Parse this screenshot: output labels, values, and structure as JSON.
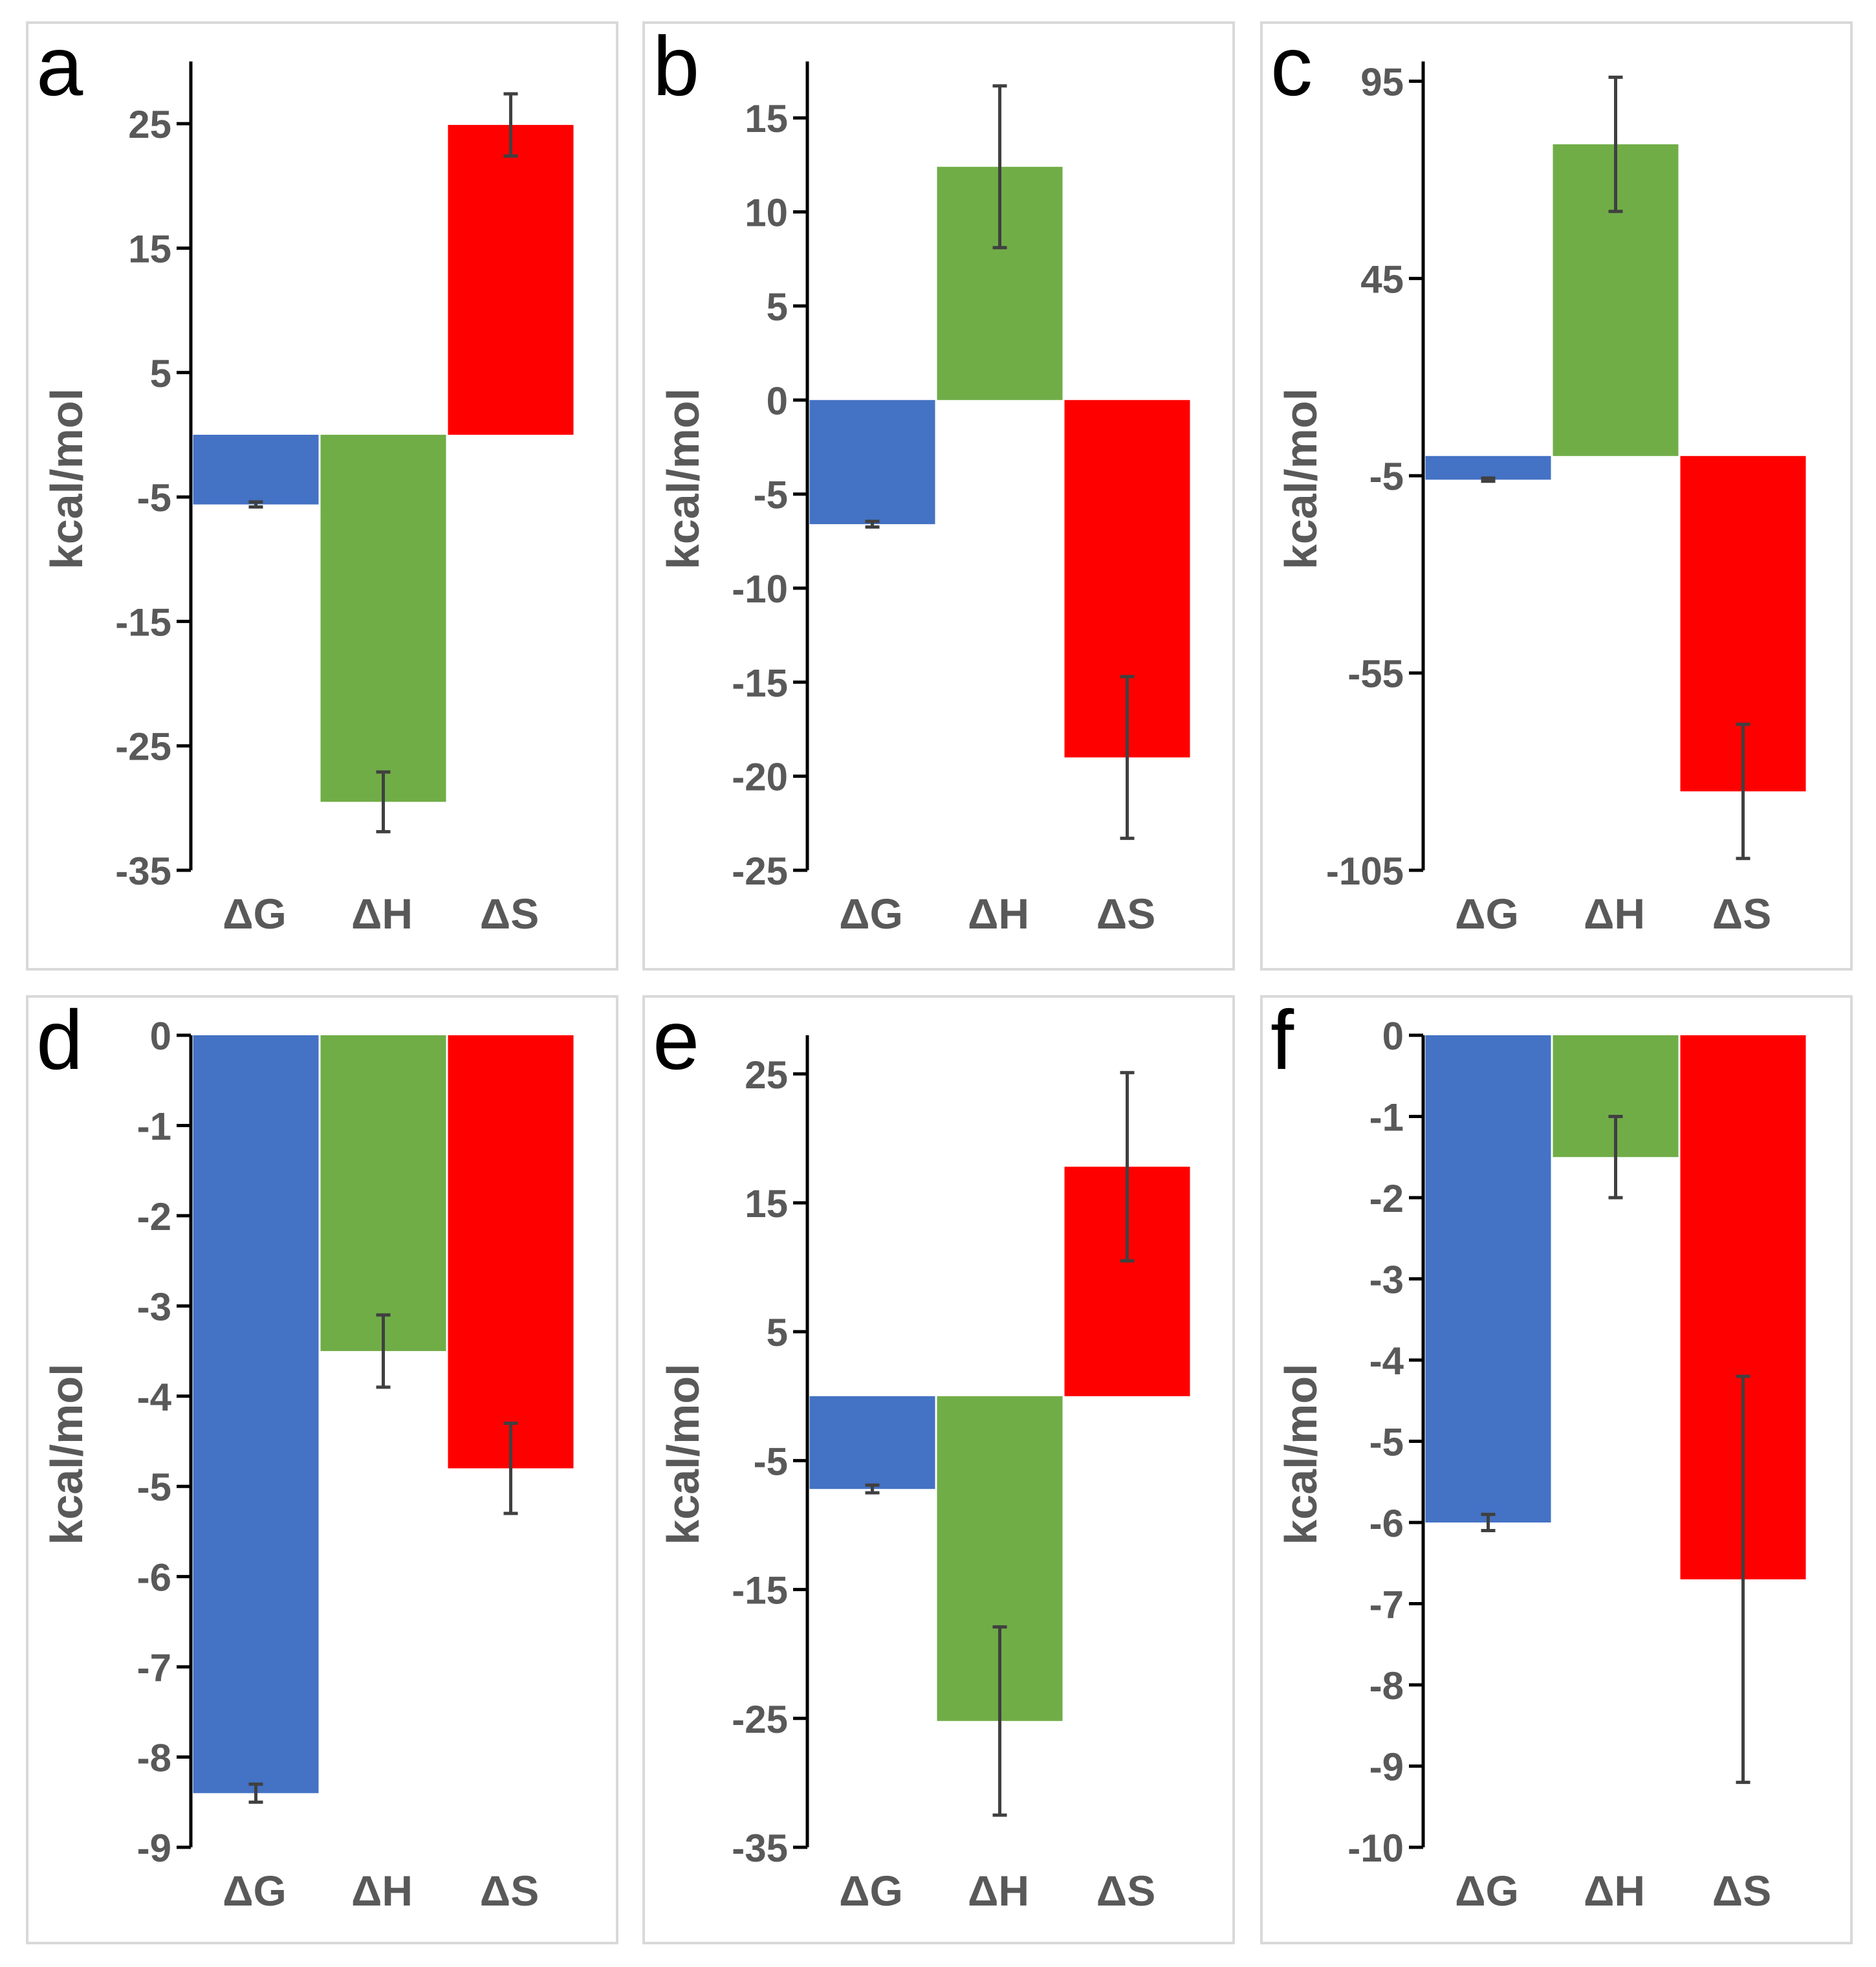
{
  "chart_data": [
    {
      "panel": "a",
      "type": "bar",
      "ylabel": "kcal/mol",
      "categories": [
        "ΔG",
        "ΔH",
        "ΔS"
      ],
      "values": [
        -5.6,
        -29.5,
        24.9
      ],
      "errors": [
        0.2,
        2.4,
        2.5
      ],
      "ylim": [
        -35,
        30
      ],
      "ticks": [
        -35,
        -25,
        -15,
        -5,
        5,
        15,
        25
      ]
    },
    {
      "panel": "b",
      "type": "bar",
      "ylabel": "kcal/mol",
      "categories": [
        "ΔG",
        "ΔH",
        "ΔS"
      ],
      "values": [
        -6.6,
        12.4,
        -19.0
      ],
      "errors": [
        0.15,
        4.3,
        4.3
      ],
      "ylim": [
        -25,
        18
      ],
      "ticks": [
        -25,
        -20,
        -15,
        -10,
        -5,
        0,
        5,
        10,
        15
      ]
    },
    {
      "panel": "c",
      "type": "bar",
      "ylabel": "kcal/mol",
      "categories": [
        "ΔG",
        "ΔH",
        "ΔS"
      ],
      "values": [
        -6.0,
        79.0,
        -85.0
      ],
      "errors": [
        0.4,
        17.0,
        17.0
      ],
      "ylim": [
        -105,
        100
      ],
      "ticks": [
        -105,
        -55,
        -5,
        45,
        95
      ]
    },
    {
      "panel": "d",
      "type": "bar",
      "ylabel": "kcal/mol",
      "categories": [
        "ΔG",
        "ΔH",
        "ΔS"
      ],
      "values": [
        -8.4,
        -3.5,
        -4.8
      ],
      "errors": [
        0.1,
        0.4,
        0.5
      ],
      "ylim": [
        -9,
        0
      ],
      "ticks": [
        -9,
        -8,
        -7,
        -6,
        -5,
        -4,
        -3,
        -2,
        -1,
        0
      ]
    },
    {
      "panel": "e",
      "type": "bar",
      "ylabel": "kcal/mol",
      "categories": [
        "ΔG",
        "ΔH",
        "ΔS"
      ],
      "values": [
        -7.2,
        -25.2,
        17.8
      ],
      "errors": [
        0.3,
        7.3,
        7.3
      ],
      "ylim": [
        -35,
        28
      ],
      "ticks": [
        -35,
        -25,
        -15,
        -5,
        5,
        15,
        25
      ]
    },
    {
      "panel": "f",
      "type": "bar",
      "ylabel": "kcal/mol",
      "categories": [
        "ΔG",
        "ΔH",
        "ΔS"
      ],
      "values": [
        -6.0,
        -1.5,
        -6.7
      ],
      "errors": [
        0.1,
        0.5,
        2.5
      ],
      "ylim": [
        -10,
        0
      ],
      "ticks": [
        -10,
        -9,
        -8,
        -7,
        -6,
        -5,
        -4,
        -3,
        -2,
        -1,
        0
      ]
    }
  ],
  "colors": {
    "dG": "#4472C4",
    "dH": "#70AD47",
    "dS": "#FF0000",
    "axis": "#000000",
    "text": "#595959",
    "error": "#404040",
    "frame": "#D9D9D9"
  }
}
